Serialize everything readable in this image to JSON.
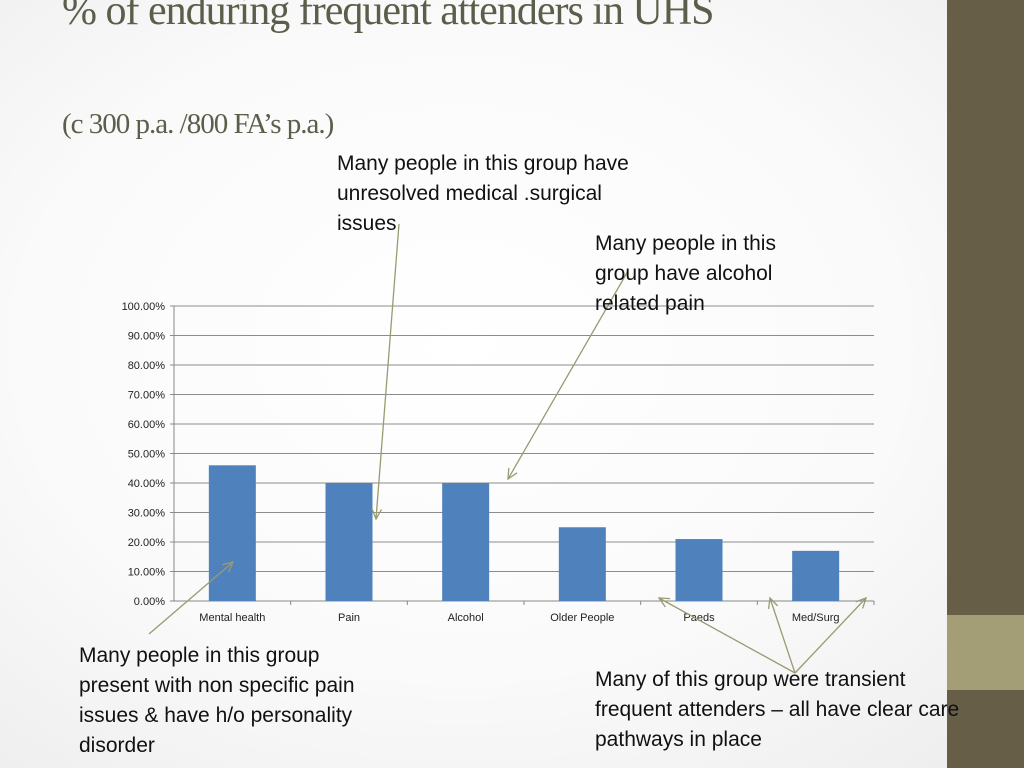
{
  "slide": {
    "title": "% of enduring frequent attenders in UHS",
    "subtitle": "(c 300 p.a. /800 FA’s p.a.)"
  },
  "annotations": {
    "medical": "Many people in this group have unresolved medical .surgical issues",
    "alcohol": "Many people in this group have alcohol related pain",
    "mental": "Many people in this group present with non specific pain issues & have h/o personality disorder",
    "transient": "Many of this group were transient frequent attenders – all have clear care pathways in place"
  },
  "chart_data": {
    "type": "bar",
    "categories": [
      "Mental health",
      "Pain",
      "Alcohol",
      "Older People",
      "Paeds",
      "Med/Surg"
    ],
    "values": [
      0.46,
      0.4,
      0.4,
      0.25,
      0.21,
      0.17
    ],
    "ylim": [
      0,
      1
    ],
    "y_ticks": [
      "0.00%",
      "10.00%",
      "20.00%",
      "30.00%",
      "40.00%",
      "50.00%",
      "60.00%",
      "70.00%",
      "80.00%",
      "90.00%",
      "100.00%"
    ],
    "grid": true,
    "bar_color": "#4f81bd"
  },
  "colors": {
    "sidebar": "#675e47",
    "sidebar_accent": "#a39e76",
    "title": "#5b5e4a",
    "arrow": "#9a9a72"
  }
}
